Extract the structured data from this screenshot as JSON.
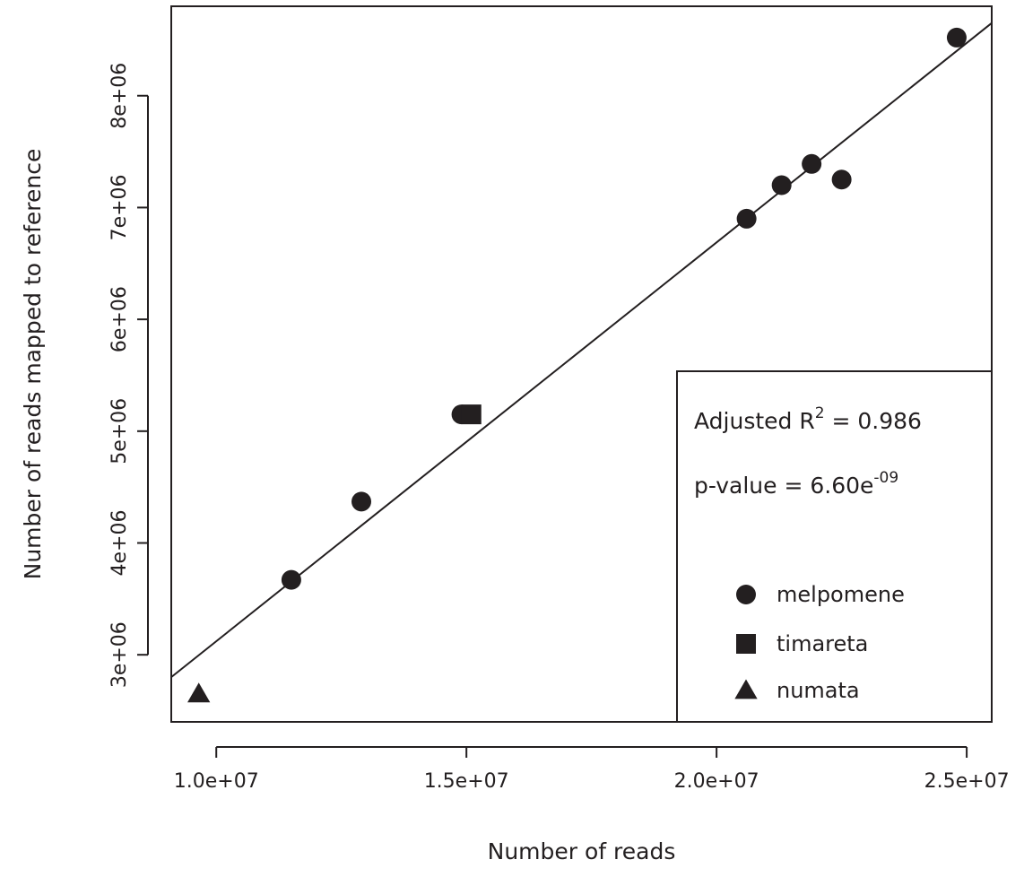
{
  "chart_data": {
    "type": "scatter",
    "xlabel": "Number of reads",
    "ylabel": "Number of reads mapped to reference",
    "xlim": [
      9100000,
      25500000
    ],
    "ylim": [
      2400000,
      8800000
    ],
    "x_ticks": [
      10000000,
      15000000,
      20000000,
      25000000
    ],
    "x_tick_labels": [
      "1.0e+07",
      "1.5e+07",
      "2.0e+07",
      "2.5e+07"
    ],
    "y_ticks": [
      3000000,
      4000000,
      5000000,
      6000000,
      7000000,
      8000000
    ],
    "y_tick_labels": [
      "3e+06",
      "4e+06",
      "5e+06",
      "6e+06",
      "7e+06",
      "8e+06"
    ],
    "grid": false,
    "legend_position": "bottom-right",
    "series": [
      {
        "name": "melpomene",
        "marker": "circle",
        "points": [
          {
            "x": 11500000,
            "y": 3670000
          },
          {
            "x": 12900000,
            "y": 4370000
          },
          {
            "x": 14900000,
            "y": 5150000
          },
          {
            "x": 20600000,
            "y": 6900000
          },
          {
            "x": 21300000,
            "y": 7200000
          },
          {
            "x": 21900000,
            "y": 7390000
          },
          {
            "x": 22500000,
            "y": 7250000
          },
          {
            "x": 24800000,
            "y": 8520000
          }
        ]
      },
      {
        "name": "timareta",
        "marker": "square",
        "points": [
          {
            "x": 15100000,
            "y": 5150000
          }
        ]
      },
      {
        "name": "numata",
        "marker": "triangle",
        "points": [
          {
            "x": 9650000,
            "y": 2650000
          }
        ]
      }
    ],
    "regression_line": {
      "points": [
        {
          "x": 9100000,
          "y": 2800000
        },
        {
          "x": 25500000,
          "y": 8650000
        }
      ]
    },
    "stats": {
      "r2_label": "Adjusted R",
      "r2_exponent": "2",
      "r2_value": " = 0.986",
      "pvalue_label": "p-value = 6.60e",
      "pvalue_exponent": "-09"
    },
    "colors": {
      "ink": "#231f20",
      "background": "#ffffff"
    }
  }
}
